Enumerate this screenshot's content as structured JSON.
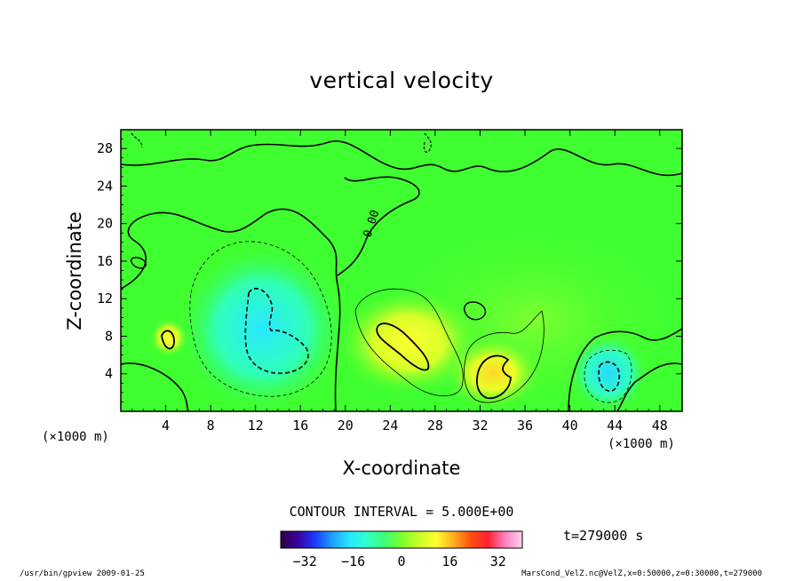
{
  "chart_data": {
    "type": "contour",
    "title": "vertical velocity",
    "xlabel": "X-coordinate",
    "ylabel": "Z-coordinate",
    "x_unit": "(×1000 m)",
    "y_unit": "(×1000 m)",
    "xlim": [
      0,
      50
    ],
    "ylim": [
      0,
      30
    ],
    "xticks": [
      4,
      8,
      12,
      16,
      20,
      24,
      28,
      32,
      36,
      40,
      44,
      48
    ],
    "yticks": [
      4,
      8,
      12,
      16,
      20,
      24,
      28
    ],
    "contour_interval_label": "CONTOUR INTERVAL = 5.000E+00",
    "zero_contour_label": "0.00",
    "colorbar": {
      "min": -40,
      "max": 40,
      "ticks": [
        -32,
        -16,
        0,
        16,
        32
      ],
      "colors": [
        "#2a0040",
        "#3a00a0",
        "#1a3cff",
        "#1fa0ff",
        "#28e8ff",
        "#30ffc8",
        "#3cff78",
        "#7cff30",
        "#c8ff28",
        "#ffff30",
        "#ffb020",
        "#ff5010",
        "#ff2030",
        "#ff80c0",
        "#ffd0f0"
      ]
    },
    "time_label": "t=279000 s",
    "background_color": "#40ff30",
    "features": [
      {
        "kind": "updraft",
        "x": 26,
        "z": 7.5,
        "value": 10
      },
      {
        "kind": "updraft",
        "x": 33,
        "z": 3.5,
        "value": 12
      },
      {
        "kind": "updraft",
        "x": 4,
        "z": 8,
        "value": 8
      },
      {
        "kind": "downdraft",
        "x": 13,
        "z": 8,
        "value": -12
      },
      {
        "kind": "downdraft",
        "x": 43.5,
        "z": 3.5,
        "value": -12
      }
    ]
  },
  "footer": {
    "left": "/usr/bin/gpview  2009-01-25",
    "right": "MarsCond_VelZ.nc@VelZ,x=0:50000,z=0:30000,t=279000"
  }
}
